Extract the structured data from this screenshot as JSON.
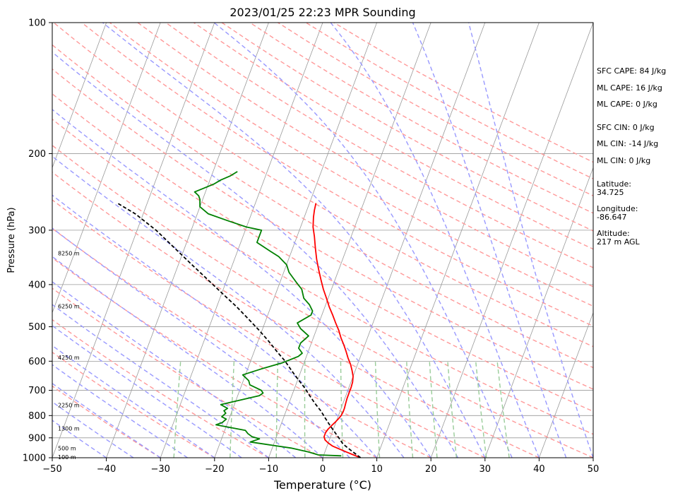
{
  "chart_data": {
    "type": "line",
    "title": "2023/01/25 22:23 MPR Sounding",
    "xlabel": "Temperature (°C)",
    "ylabel": "Pressure (hPa)",
    "xlim": [
      -50,
      50
    ],
    "ylim": [
      1000,
      100
    ],
    "y_scale": "log",
    "skew": "skew-T",
    "grid": true,
    "x_ticks": [
      "−50",
      "−40",
      "−30",
      "−20",
      "−10",
      "0",
      "10",
      "20",
      "30",
      "40",
      "50"
    ],
    "x_tick_values": [
      -50,
      -40,
      -30,
      -20,
      -10,
      0,
      10,
      20,
      30,
      40,
      50
    ],
    "y_ticks": [
      "100",
      "200",
      "300",
      "400",
      "500",
      "600",
      "700",
      "800",
      "900",
      "1000"
    ],
    "y_tick_values": [
      100,
      200,
      300,
      400,
      500,
      600,
      700,
      800,
      900,
      1000
    ],
    "height_labels": [
      {
        "text": "100 m",
        "p": 1000
      },
      {
        "text": "500 m",
        "p": 955
      },
      {
        "text": "1300 m",
        "p": 860
      },
      {
        "text": "2250 m",
        "p": 760
      },
      {
        "text": "4250 m",
        "p": 590
      },
      {
        "text": "6250 m",
        "p": 450
      },
      {
        "text": "8250 m",
        "p": 340
      }
    ],
    "series": [
      {
        "color": "#ff0000",
        "points": [
          [
            7.0,
            1000
          ],
          [
            5.5,
            985
          ],
          [
            4.0,
            970
          ],
          [
            2.5,
            955
          ],
          [
            1.0,
            940
          ],
          [
            0.0,
            925
          ],
          [
            -0.8,
            910
          ],
          [
            -1.2,
            895
          ],
          [
            -1.2,
            875
          ],
          [
            -1.0,
            860
          ],
          [
            -0.6,
            845
          ],
          [
            -0.2,
            830
          ],
          [
            0.2,
            815
          ],
          [
            0.5,
            800
          ],
          [
            0.6,
            785
          ],
          [
            0.6,
            770
          ],
          [
            0.5,
            750
          ],
          [
            0.4,
            730
          ],
          [
            0.4,
            710
          ],
          [
            0.4,
            690
          ],
          [
            0.3,
            670
          ],
          [
            0.0,
            650
          ],
          [
            -0.6,
            630
          ],
          [
            -1.3,
            610
          ],
          [
            -2.2,
            590
          ],
          [
            -3.0,
            570
          ],
          [
            -3.9,
            550
          ],
          [
            -4.9,
            530
          ],
          [
            -5.8,
            510
          ],
          [
            -6.9,
            490
          ],
          [
            -8.0,
            470
          ],
          [
            -9.2,
            450
          ],
          [
            -10.3,
            430
          ],
          [
            -11.5,
            410
          ],
          [
            -12.6,
            390
          ],
          [
            -13.7,
            370
          ],
          [
            -14.8,
            350
          ],
          [
            -15.8,
            330
          ],
          [
            -16.8,
            310
          ],
          [
            -17.7,
            295
          ],
          [
            -18.3,
            280
          ],
          [
            -18.6,
            270
          ],
          [
            -18.8,
            260
          ]
        ]
      },
      {
        "color": "#008000",
        "points": [
          [
            3.3,
            990
          ],
          [
            -1.0,
            985
          ],
          [
            -3.0,
            970
          ],
          [
            -6.5,
            950
          ],
          [
            -10.5,
            935
          ],
          [
            -14.5,
            920
          ],
          [
            -13.0,
            905
          ],
          [
            -14.5,
            895
          ],
          [
            -15.5,
            880
          ],
          [
            -16.2,
            865
          ],
          [
            -18.5,
            855
          ],
          [
            -22.0,
            840
          ],
          [
            -21.0,
            830
          ],
          [
            -20.5,
            815
          ],
          [
            -21.5,
            805
          ],
          [
            -21.0,
            790
          ],
          [
            -21.5,
            780
          ],
          [
            -21.0,
            770
          ],
          [
            -22.5,
            755
          ],
          [
            -16.0,
            720
          ],
          [
            -15.5,
            710
          ],
          [
            -16.0,
            700
          ],
          [
            -18.5,
            680
          ],
          [
            -19.0,
            665
          ],
          [
            -20.5,
            645
          ],
          [
            -17.5,
            625
          ],
          [
            -14.0,
            605
          ],
          [
            -11.5,
            585
          ],
          [
            -11.0,
            575
          ],
          [
            -12.0,
            560
          ],
          [
            -12.0,
            545
          ],
          [
            -11.0,
            525
          ],
          [
            -13.0,
            505
          ],
          [
            -14.0,
            490
          ],
          [
            -12.0,
            470
          ],
          [
            -12.0,
            460
          ],
          [
            -13.0,
            445
          ],
          [
            -14.5,
            430
          ],
          [
            -15.5,
            410
          ],
          [
            -17.0,
            395
          ],
          [
            -19.0,
            375
          ],
          [
            -20.0,
            360
          ],
          [
            -22.0,
            345
          ],
          [
            -24.0,
            335
          ],
          [
            -26.0,
            325
          ],
          [
            -27.0,
            320
          ],
          [
            -27.0,
            300
          ],
          [
            -30.0,
            295
          ],
          [
            -34.0,
            285
          ],
          [
            -38.0,
            275
          ],
          [
            -40.0,
            265
          ],
          [
            -40.5,
            255
          ],
          [
            -41.0,
            250
          ],
          [
            -42.0,
            245
          ],
          [
            -40.5,
            240
          ],
          [
            -39.0,
            235
          ],
          [
            -38.0,
            230
          ],
          [
            -36.5,
            225
          ],
          [
            -35.5,
            220
          ]
        ]
      },
      {
        "color": "#000000",
        "dash": "dashed",
        "points": [
          [
            7.0,
            1000
          ],
          [
            4.3,
            955
          ],
          [
            2.8,
            930
          ],
          [
            1.6,
            900
          ],
          [
            0.3,
            870
          ],
          [
            -1.0,
            840
          ],
          [
            -2.3,
            810
          ],
          [
            -3.6,
            780
          ],
          [
            -5.2,
            750
          ],
          [
            -6.7,
            720
          ],
          [
            -8.2,
            690
          ],
          [
            -10.0,
            660
          ],
          [
            -11.8,
            630
          ],
          [
            -13.6,
            600
          ],
          [
            -15.8,
            570
          ],
          [
            -18.0,
            540
          ],
          [
            -20.5,
            510
          ],
          [
            -23.3,
            480
          ],
          [
            -26.3,
            450
          ],
          [
            -29.8,
            420
          ],
          [
            -33.5,
            390
          ],
          [
            -37.5,
            360
          ],
          [
            -41.8,
            330
          ],
          [
            -46.5,
            300
          ],
          [
            -51.5,
            275
          ],
          [
            -55.5,
            260
          ]
        ]
      }
    ]
  },
  "sidebar": {
    "cape_cin": [
      "SFC CAPE: 84 J/kg",
      "ML CAPE: 16 J/kg",
      "ML CAPE: 0 J/kg",
      "SFC CIN: 0 J/kg",
      "ML CIN: -14 J/kg",
      "ML CIN: 0 J/kg"
    ],
    "latitude": "Latitude:\n34.725",
    "longitude": "Longitude:\n-86.647",
    "altitude": "Altitude:\n217 m AGL"
  },
  "colors": {
    "temperature": "#ff0000",
    "dewpoint": "#008000",
    "parcel": "#000000",
    "dry_adiabat": "#ff9999",
    "moist_adiabat": "#9999ff",
    "mixing_ratio": "#99cc99",
    "isotherm": "#999999"
  }
}
